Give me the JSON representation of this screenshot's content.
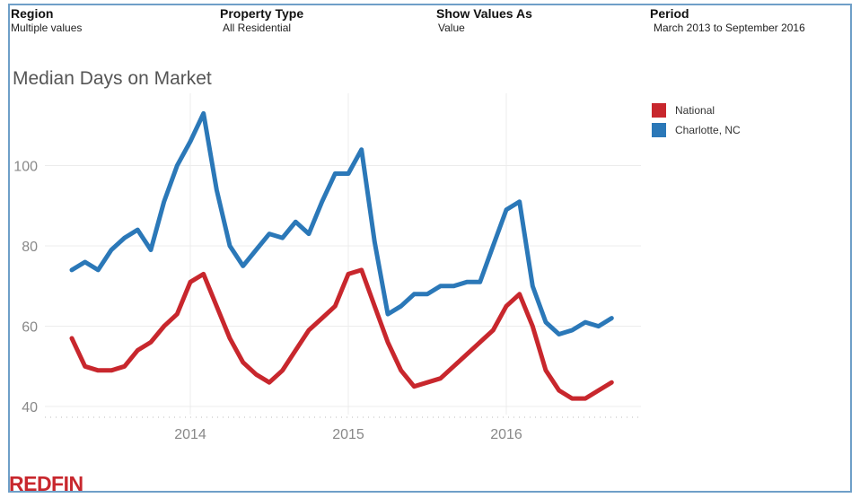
{
  "filters": [
    {
      "label": "Region",
      "value": "Multiple values"
    },
    {
      "label": "Property Type",
      "value": "All Residential"
    },
    {
      "label": "Show Values As",
      "value": "Value"
    },
    {
      "label": "Period",
      "value": "March 2013 to September 2016"
    }
  ],
  "logo": "REDFIN",
  "chart_data": {
    "type": "line",
    "title": "Median Days on Market",
    "xlabel": "",
    "ylabel": "",
    "x": [
      "2013-04",
      "2013-05",
      "2013-06",
      "2013-07",
      "2013-08",
      "2013-09",
      "2013-10",
      "2013-11",
      "2013-12",
      "2014-01",
      "2014-02",
      "2014-03",
      "2014-04",
      "2014-05",
      "2014-06",
      "2014-07",
      "2014-08",
      "2014-09",
      "2014-10",
      "2014-11",
      "2014-12",
      "2015-01",
      "2015-02",
      "2015-03",
      "2015-04",
      "2015-05",
      "2015-06",
      "2015-07",
      "2015-08",
      "2015-09",
      "2015-10",
      "2015-11",
      "2015-12",
      "2016-01",
      "2016-02",
      "2016-03",
      "2016-04",
      "2016-05",
      "2016-06",
      "2016-07",
      "2016-08",
      "2016-09"
    ],
    "series": [
      {
        "name": "National",
        "color": "#c8272d",
        "values": [
          57,
          50,
          49,
          49,
          50,
          54,
          56,
          60,
          63,
          71,
          73,
          65,
          57,
          51,
          48,
          46,
          49,
          54,
          59,
          62,
          65,
          73,
          74,
          65,
          56,
          49,
          45,
          46,
          47,
          50,
          53,
          56,
          59,
          65,
          68,
          60,
          49,
          44,
          42,
          42,
          44,
          46
        ]
      },
      {
        "name": "Charlotte, NC",
        "color": "#2b78b8",
        "values": [
          74,
          76,
          74,
          79,
          82,
          84,
          79,
          91,
          100,
          106,
          113,
          94,
          80,
          75,
          79,
          83,
          82,
          86,
          83,
          91,
          98,
          98,
          104,
          81,
          63,
          65,
          68,
          68,
          70,
          70,
          71,
          71,
          80,
          89,
          91,
          70,
          61,
          58,
          59,
          61,
          60,
          62
        ]
      }
    ],
    "x_ticks": [
      "2014",
      "2015",
      "2016"
    ],
    "y_ticks": [
      40,
      60,
      80,
      100
    ],
    "ylim": [
      38,
      118
    ],
    "grid": true,
    "legend_position": "right"
  }
}
